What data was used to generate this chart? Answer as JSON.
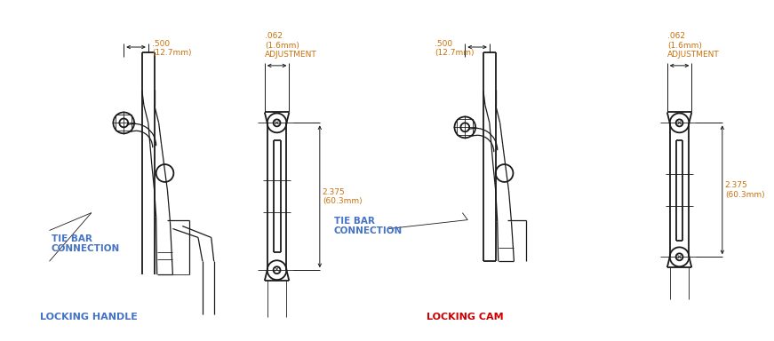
{
  "bg_color": "#ffffff",
  "line_color": "#1a1a1a",
  "dim_color": "#c8700a",
  "label_color_blue": "#4472c4",
  "label_color_red": "#cc0000",
  "locking_handle_label": "LOCKING HANDLE",
  "locking_cam_label": "LOCKING CAM",
  "dim_500": ".500\n(12.7mm)",
  "dim_062": ".062\n(1.6mm)\nADJUSTMENT",
  "dim_2375": "2.375\n(60.3mm)",
  "tie_bar_label": "TIE BAR\nCONNECTION"
}
